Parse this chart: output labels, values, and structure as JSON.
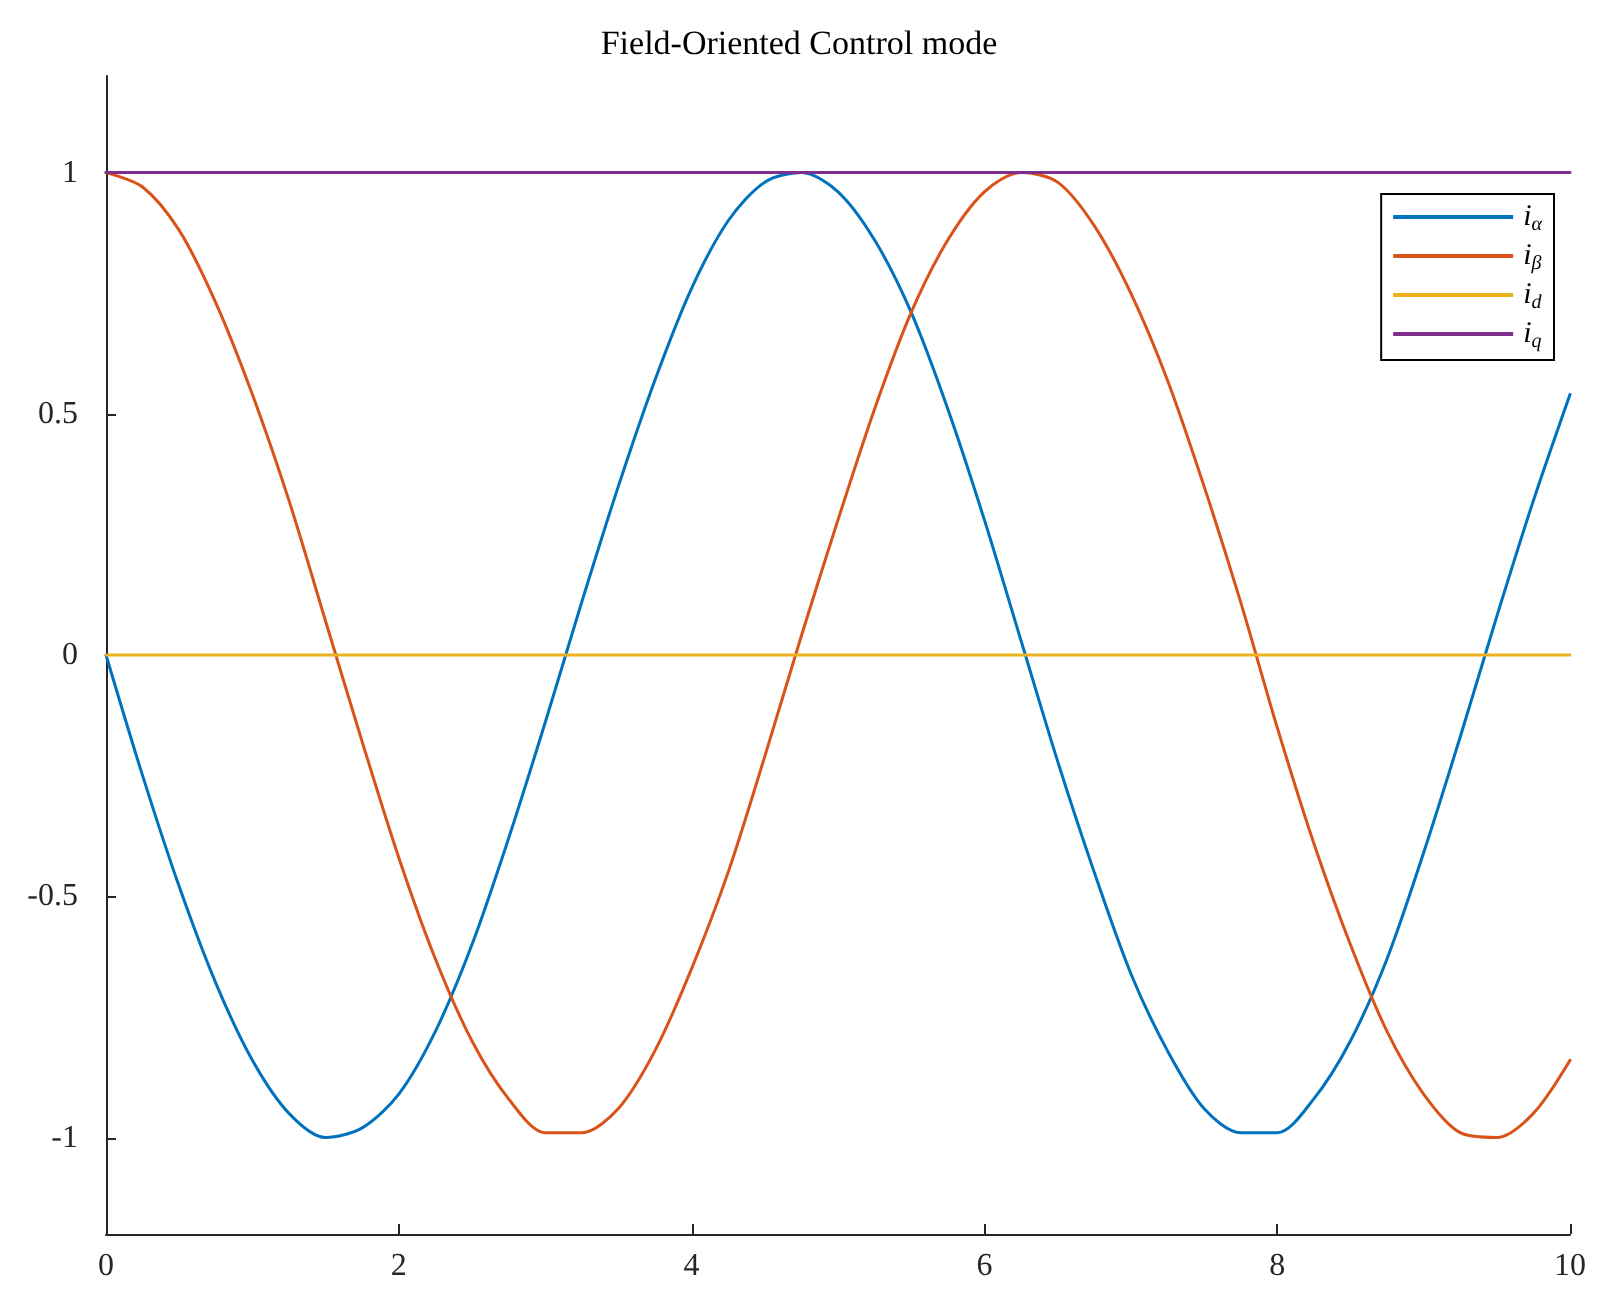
{
  "chart_data": {
    "type": "line",
    "title": "Field-Oriented Control mode",
    "x": [
      0,
      0.25,
      0.5,
      0.75,
      1,
      1.25,
      1.5,
      1.75,
      2,
      2.25,
      2.5,
      2.75,
      3,
      3.25,
      3.5,
      3.75,
      4,
      4.25,
      4.5,
      4.75,
      5,
      5.25,
      5.5,
      5.75,
      6,
      6.25,
      6.5,
      6.75,
      7,
      7.25,
      7.5,
      7.75,
      8,
      8.25,
      8.5,
      8.75,
      9,
      9.25,
      9.5,
      9.75,
      10
    ],
    "series": [
      {
        "name": "i$_{α}$",
        "color": "#0072bd",
        "values": [
          0,
          -0.25,
          -0.48,
          -0.68,
          -0.84,
          -0.95,
          -1.0,
          -0.98,
          -0.91,
          -0.78,
          -0.6,
          -0.38,
          -0.14,
          0.11,
          0.35,
          0.57,
          0.76,
          0.9,
          0.98,
          1.0,
          0.96,
          0.86,
          0.71,
          0.51,
          0.28,
          0.03,
          -0.22,
          -0.45,
          -0.66,
          -0.82,
          -0.94,
          -0.99,
          -0.99,
          -0.92,
          -0.8,
          -0.63,
          -0.41,
          -0.17,
          0.08,
          0.32,
          0.54
        ]
      },
      {
        "name": "i$_{β}$",
        "color": "#d95319",
        "values": [
          1,
          0.97,
          0.88,
          0.73,
          0.54,
          0.32,
          0.07,
          -0.18,
          -0.42,
          -0.63,
          -0.8,
          -0.92,
          -0.99,
          -0.99,
          -0.94,
          -0.82,
          -0.65,
          -0.45,
          -0.21,
          0.04,
          0.28,
          0.51,
          0.71,
          0.86,
          0.96,
          1.0,
          0.98,
          0.89,
          0.75,
          0.57,
          0.35,
          0.11,
          -0.15,
          -0.39,
          -0.6,
          -0.78,
          -0.91,
          -0.99,
          -1.0,
          -0.95,
          -0.84
        ]
      },
      {
        "name": "i$_{d}$",
        "color": "#edb120",
        "values": [
          0,
          0,
          0,
          0,
          0,
          0,
          0,
          0,
          0,
          0,
          0,
          0,
          0,
          0,
          0,
          0,
          0,
          0,
          0,
          0,
          0,
          0,
          0,
          0,
          0,
          0,
          0,
          0,
          0,
          0,
          0,
          0,
          0,
          0,
          0,
          0,
          0,
          0,
          0,
          0,
          0
        ]
      },
      {
        "name": "i$_{q}$",
        "color": "#7e2f8e",
        "values": [
          1,
          1,
          1,
          1,
          1,
          1,
          1,
          1,
          1,
          1,
          1,
          1,
          1,
          1,
          1,
          1,
          1,
          1,
          1,
          1,
          1,
          1,
          1,
          1,
          1,
          1,
          1,
          1,
          1,
          1,
          1,
          1,
          1,
          1,
          1,
          1,
          1,
          1,
          1,
          1,
          1
        ]
      }
    ],
    "xlim": [
      0,
      10
    ],
    "xticks": [
      0,
      2,
      4,
      6,
      8,
      10
    ],
    "ylim": [
      -1.2,
      1.2
    ],
    "yticks": [
      -1,
      -0.5,
      0,
      0.5,
      1
    ],
    "grid": false,
    "legend": "top right"
  }
}
